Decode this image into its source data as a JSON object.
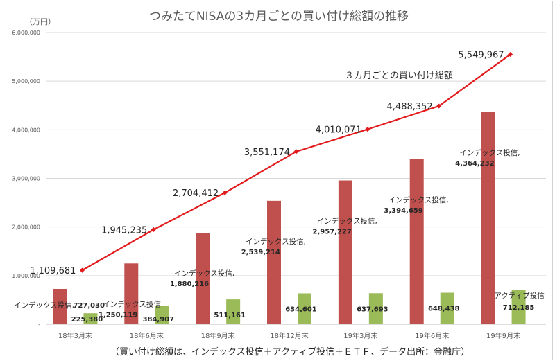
{
  "chart_data": {
    "type": "bar",
    "title": "つみたてNISAの3カ月ごとの買い付け総額の推移",
    "unit_label": "（万円）",
    "categories": [
      "18年3月末",
      "18年6月末",
      "18年9月末",
      "18年12月末",
      "19年3月末",
      "19年6月末",
      "19年9月末"
    ],
    "ylim": [
      0,
      6000000
    ],
    "yticks": [
      "-",
      "1,000,000",
      "2,000,000",
      "3,000,000",
      "4,000,000",
      "5,000,000",
      "6,000,000"
    ],
    "grid": true,
    "series": [
      {
        "kind": "bar",
        "color": "#c0504d",
        "values": [
          727030,
          1250119,
          1880216,
          2539214,
          2957227,
          3394659,
          4364232
        ],
        "value_labels": [
          "727,030",
          "1,250,119",
          "1,880,216",
          "2,539,214",
          "2,957,227",
          "3,394,659",
          "4,364,232"
        ],
        "point_label": "インデックス投信,"
      },
      {
        "kind": "bar",
        "color": "#9bbb59",
        "values": [
          225380,
          384907,
          511161,
          634601,
          637693,
          648438,
          712185
        ],
        "value_labels": [
          "225,380",
          "384,907",
          "511,161",
          "634,601",
          "637,693",
          "648,438",
          "712,185"
        ],
        "point_label": "アクティブ投信"
      },
      {
        "name": "３カ月ごとの買い付け総額",
        "kind": "line",
        "color": "#e31a1c",
        "values": [
          1109681,
          1945235,
          2704412,
          3551174,
          4010071,
          4488352,
          5549967
        ],
        "value_labels": [
          "1,109,681",
          "1,945,235",
          "2,704,412",
          "3,551,174",
          "4,010,071",
          "4,488,352",
          "5,549,967"
        ]
      }
    ],
    "footnote": "（買い付け総額は、インデックス投信＋アクティブ投信＋ＥＴＦ、データ出所：金融庁）"
  }
}
